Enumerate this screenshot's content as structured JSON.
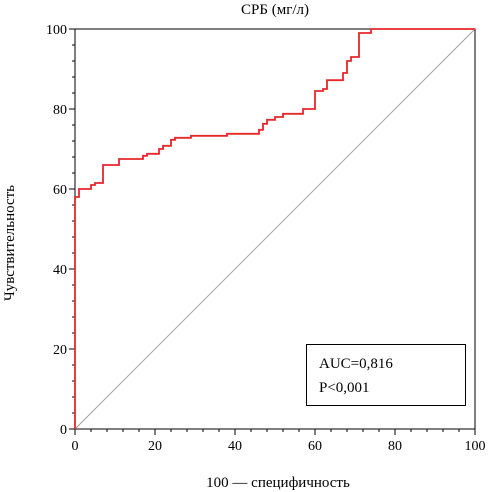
{
  "chart_data": {
    "type": "line",
    "title": "СРБ (мг/л)",
    "xlabel": "100 — специфичность",
    "ylabel": "Чувствительность",
    "xlim": [
      0,
      100
    ],
    "ylim": [
      0,
      100
    ],
    "xticks": [
      "0",
      "20",
      "40",
      "60",
      "80",
      "100"
    ],
    "yticks": [
      "0",
      "20",
      "40",
      "60",
      "80",
      "100"
    ],
    "grid": false,
    "legend": "none",
    "series": [
      {
        "color": "#e8272a",
        "points": [
          [
            0,
            0
          ],
          [
            0,
            58
          ],
          [
            1,
            58
          ],
          [
            1,
            60
          ],
          [
            4,
            60
          ],
          [
            4,
            61
          ],
          [
            5,
            61
          ],
          [
            5,
            61.5
          ],
          [
            7,
            61.5
          ],
          [
            7,
            66
          ],
          [
            11,
            66
          ],
          [
            11,
            67.5
          ],
          [
            17,
            67.5
          ],
          [
            17,
            68.3
          ],
          [
            18,
            68.3
          ],
          [
            18,
            68.8
          ],
          [
            21,
            68.8
          ],
          [
            21,
            70
          ],
          [
            22,
            70
          ],
          [
            22,
            70.8
          ],
          [
            24,
            70.8
          ],
          [
            24,
            72.3
          ],
          [
            25,
            72.3
          ],
          [
            25,
            72.8
          ],
          [
            29,
            72.8
          ],
          [
            29,
            73.3
          ],
          [
            38,
            73.3
          ],
          [
            38,
            73.8
          ],
          [
            46,
            73.8
          ],
          [
            46,
            74.8
          ],
          [
            47,
            74.8
          ],
          [
            47,
            76.3
          ],
          [
            48,
            76.3
          ],
          [
            48,
            77.3
          ],
          [
            50,
            77.3
          ],
          [
            50,
            78
          ],
          [
            52,
            78
          ],
          [
            52,
            78.8
          ],
          [
            57,
            78.8
          ],
          [
            57,
            80
          ],
          [
            60,
            80
          ],
          [
            60,
            84.5
          ],
          [
            62,
            84.5
          ],
          [
            62,
            85
          ],
          [
            63,
            85
          ],
          [
            63,
            87.2
          ],
          [
            67,
            87.2
          ],
          [
            67,
            89
          ],
          [
            68,
            89
          ],
          [
            68,
            92
          ],
          [
            69,
            92
          ],
          [
            69,
            93
          ],
          [
            71,
            93
          ],
          [
            71,
            99
          ],
          [
            74,
            99
          ],
          [
            74,
            100
          ],
          [
            100,
            100
          ]
        ]
      },
      {
        "color": "#999999",
        "points": [
          [
            0,
            0
          ],
          [
            100,
            100
          ]
        ]
      }
    ],
    "annotations": [
      "AUC=0,816",
      "P<0,001"
    ]
  }
}
